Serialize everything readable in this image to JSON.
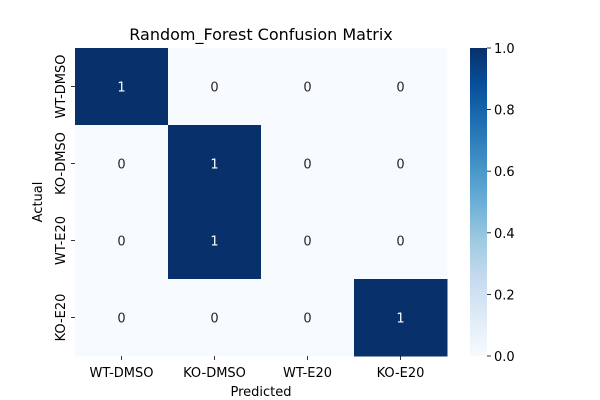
{
  "chart_data": {
    "type": "heatmap",
    "title": "Random_Forest Confusion Matrix",
    "xlabel": "Predicted",
    "ylabel": "Actual",
    "x_categories": [
      "WT-DMSO",
      "KO-DMSO",
      "WT-E20",
      "KO-E20"
    ],
    "y_categories": [
      "WT-DMSO",
      "KO-DMSO",
      "WT-E20",
      "KO-E20"
    ],
    "values": [
      [
        1,
        0,
        0,
        0
      ],
      [
        0,
        1,
        0,
        0
      ],
      [
        0,
        1,
        0,
        0
      ],
      [
        0,
        0,
        0,
        1
      ]
    ],
    "annotations": true,
    "colormap": "Blues",
    "colorbar": {
      "range": [
        0,
        1
      ],
      "ticks": [
        "0.0",
        "0.2",
        "0.4",
        "0.6",
        "0.8",
        "1.0"
      ]
    },
    "colors": {
      "low": "#f7fbff",
      "high": "#08306b"
    },
    "grid": false
  }
}
